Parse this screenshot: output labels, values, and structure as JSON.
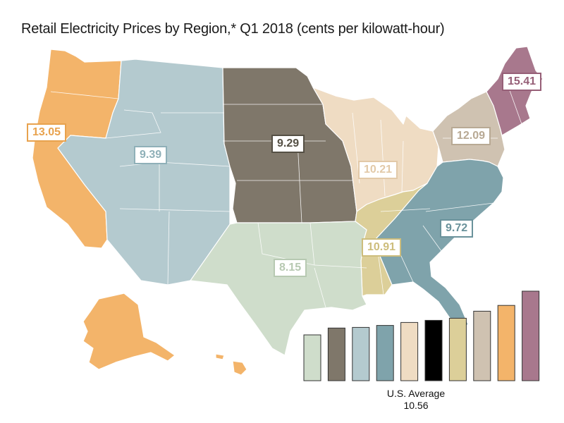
{
  "title": "Retail Electricity Prices by Region,* Q1 2018 (cents per kilowatt-hour)",
  "regions": [
    {
      "id": "pacific",
      "label": "13.05",
      "value": 13.05,
      "color": "#f3b46a",
      "text_color": "#e8a24e"
    },
    {
      "id": "mountain",
      "label": "9.39",
      "value": 9.39,
      "color": "#b4cacf",
      "text_color": "#8fb0b8"
    },
    {
      "id": "west-north-central",
      "label": "9.29",
      "value": 9.29,
      "color": "#7f776a",
      "text_color": "#555045"
    },
    {
      "id": "east-north-central",
      "label": "10.21",
      "value": 10.21,
      "color": "#efdcc3",
      "text_color": "#e2c9a8"
    },
    {
      "id": "middle-atlantic",
      "label": "12.09",
      "value": 12.09,
      "color": "#cfc2b1",
      "text_color": "#b8a994"
    },
    {
      "id": "new-england",
      "label": "15.41",
      "value": 15.41,
      "color": "#a8788d",
      "text_color": "#965f77"
    },
    {
      "id": "south-atlantic",
      "label": "9.72",
      "value": 9.72,
      "color": "#7fa3ab",
      "text_color": "#6a929b"
    },
    {
      "id": "east-south-central",
      "label": "10.91",
      "value": 10.91,
      "color": "#dccf99",
      "text_color": "#cdbd7c"
    },
    {
      "id": "west-south-central",
      "label": "8.15",
      "value": 8.15,
      "color": "#cfddcb",
      "text_color": "#b7c9b2"
    }
  ],
  "legend": {
    "bars": [
      {
        "value": 8.15,
        "color": "#cfddcb"
      },
      {
        "value": 9.29,
        "color": "#7f776a"
      },
      {
        "value": 9.39,
        "color": "#b4cacf"
      },
      {
        "value": 9.72,
        "color": "#7fa3ab"
      },
      {
        "value": 10.21,
        "color": "#efdcc3"
      },
      {
        "value": 10.56,
        "color": "#000000"
      },
      {
        "value": 10.91,
        "color": "#dccf99"
      },
      {
        "value": 12.09,
        "color": "#cfc2b1"
      },
      {
        "value": 13.05,
        "color": "#f3b46a"
      },
      {
        "value": 15.41,
        "color": "#a8788d"
      }
    ],
    "average_label": "U.S. Average",
    "average_value": "10.56"
  }
}
